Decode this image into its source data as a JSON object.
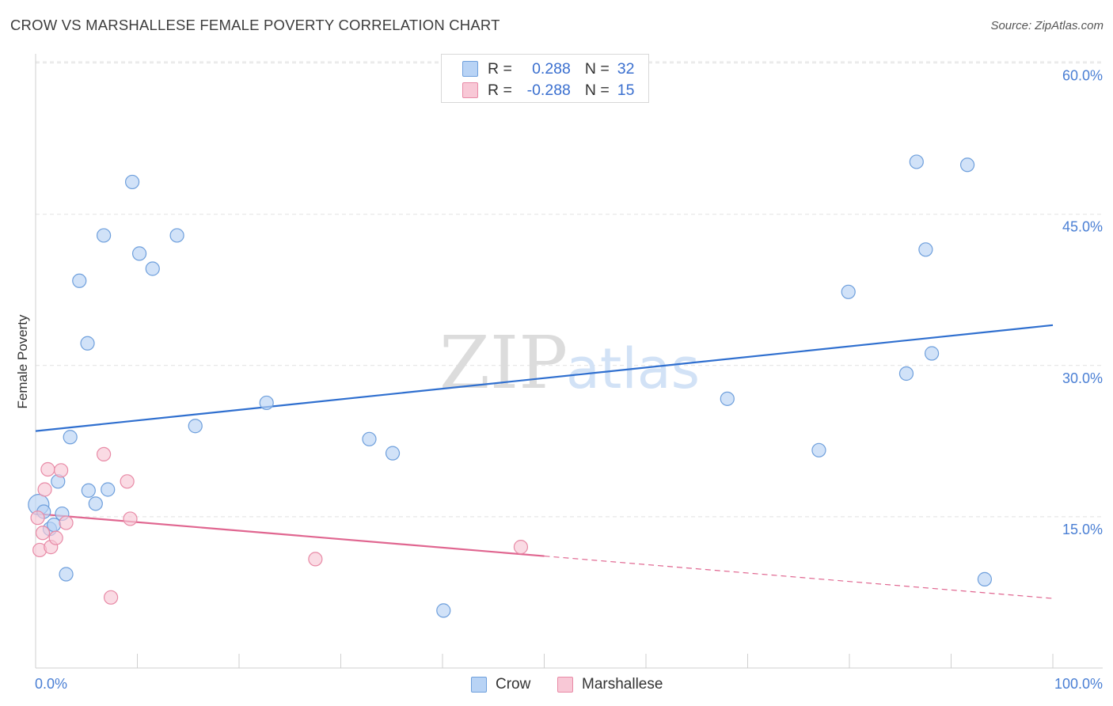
{
  "title": "CROW VS MARSHALLESE FEMALE POVERTY CORRELATION CHART",
  "source": "Source: ZipAtlas.com",
  "watermark": {
    "zip": "ZIP",
    "atlas": "atlas"
  },
  "legend": {
    "r_label": "R =",
    "n_label": "N =",
    "items": [
      {
        "name": "Crow",
        "r": "0.288",
        "n": "32",
        "fill": "#b8d3f5",
        "stroke": "#6e9fdc"
      },
      {
        "name": "Marshallese",
        "r": "-0.288",
        "n": "15",
        "fill": "#f8c8d6",
        "stroke": "#e88aa6"
      }
    ]
  },
  "chart_data": {
    "type": "scatter",
    "title": "CROW VS MARSHALLESE FEMALE POVERTY CORRELATION CHART",
    "xlabel": "",
    "ylabel": "Female Poverty",
    "xlim": [
      0,
      100
    ],
    "ylim": [
      0,
      63
    ],
    "x_tick_labels": [
      "0.0%",
      "100.0%"
    ],
    "y_ticks": [
      15,
      30,
      45,
      60
    ],
    "y_tick_labels": [
      "15.0%",
      "30.0%",
      "45.0%",
      "60.0%"
    ],
    "grid": true,
    "series": [
      {
        "name": "Crow",
        "color": "#6e9fdc",
        "fill": "#b8d3f5",
        "line_color": "#2f6fcf",
        "trend": {
          "x": [
            0,
            100
          ],
          "y": [
            23.5,
            34.0
          ],
          "dashed_from": null
        },
        "points": [
          {
            "x": 0.3,
            "y": 16.2,
            "big": true
          },
          {
            "x": 0.8,
            "y": 15.5
          },
          {
            "x": 1.4,
            "y": 13.8
          },
          {
            "x": 1.8,
            "y": 14.2
          },
          {
            "x": 2.2,
            "y": 18.5
          },
          {
            "x": 2.6,
            "y": 15.3
          },
          {
            "x": 3.0,
            "y": 9.3
          },
          {
            "x": 3.4,
            "y": 22.9
          },
          {
            "x": 4.3,
            "y": 38.4
          },
          {
            "x": 5.1,
            "y": 32.2
          },
          {
            "x": 5.2,
            "y": 17.6
          },
          {
            "x": 5.9,
            "y": 16.3
          },
          {
            "x": 6.7,
            "y": 42.9
          },
          {
            "x": 7.1,
            "y": 17.7
          },
          {
            "x": 9.5,
            "y": 48.2
          },
          {
            "x": 10.2,
            "y": 41.1
          },
          {
            "x": 11.5,
            "y": 39.6
          },
          {
            "x": 13.9,
            "y": 42.9
          },
          {
            "x": 15.7,
            "y": 24.0
          },
          {
            "x": 22.7,
            "y": 26.3
          },
          {
            "x": 32.8,
            "y": 22.7
          },
          {
            "x": 35.1,
            "y": 21.3
          },
          {
            "x": 40.1,
            "y": 5.7
          },
          {
            "x": 68.0,
            "y": 26.7
          },
          {
            "x": 77.0,
            "y": 21.6
          },
          {
            "x": 79.9,
            "y": 37.3
          },
          {
            "x": 85.6,
            "y": 29.2
          },
          {
            "x": 86.6,
            "y": 50.2
          },
          {
            "x": 87.5,
            "y": 41.5
          },
          {
            "x": 88.1,
            "y": 31.2
          },
          {
            "x": 91.6,
            "y": 49.9
          },
          {
            "x": 93.3,
            "y": 8.8
          }
        ]
      },
      {
        "name": "Marshallese",
        "color": "#e88aa6",
        "fill": "#f8c8d6",
        "line_color": "#e06690",
        "trend": {
          "x": [
            0,
            100
          ],
          "y": [
            15.3,
            6.9
          ],
          "dashed_from": 50
        },
        "points": [
          {
            "x": 0.2,
            "y": 14.9
          },
          {
            "x": 0.4,
            "y": 11.7
          },
          {
            "x": 0.7,
            "y": 13.4
          },
          {
            "x": 0.9,
            "y": 17.7
          },
          {
            "x": 1.2,
            "y": 19.7
          },
          {
            "x": 1.5,
            "y": 12.0
          },
          {
            "x": 2.0,
            "y": 12.9
          },
          {
            "x": 2.5,
            "y": 19.6
          },
          {
            "x": 3.0,
            "y": 14.4
          },
          {
            "x": 6.7,
            "y": 21.2
          },
          {
            "x": 7.4,
            "y": 7.0
          },
          {
            "x": 9.0,
            "y": 18.5
          },
          {
            "x": 9.3,
            "y": 14.8
          },
          {
            "x": 27.5,
            "y": 10.8
          },
          {
            "x": 47.7,
            "y": 12.0
          }
        ]
      }
    ]
  }
}
